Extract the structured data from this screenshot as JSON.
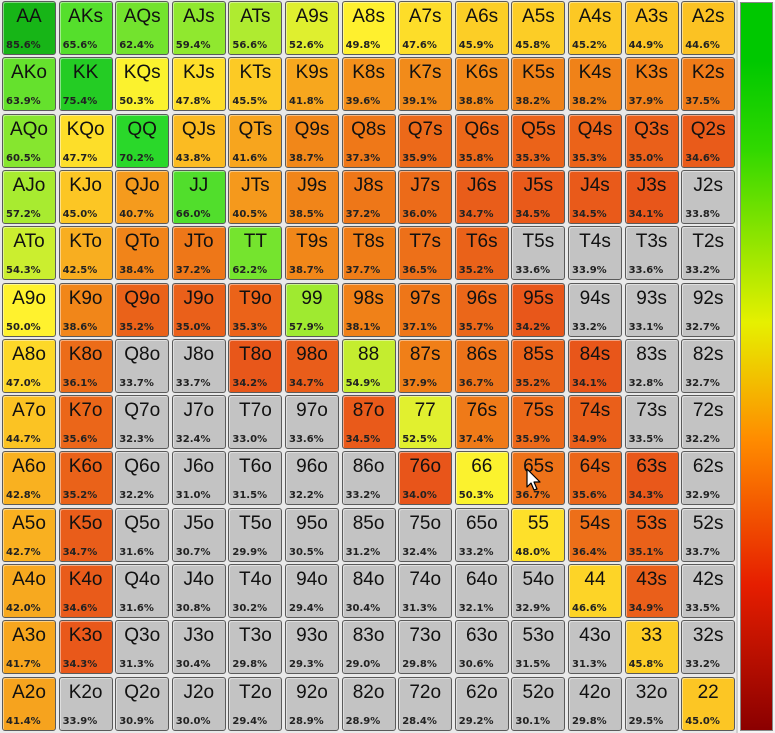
{
  "colors": {
    "gray": "#c3c3c3",
    "scale_stops": [
      "#00c800",
      "#e6f000",
      "#ff8c00",
      "#e61e00",
      "#8b0000"
    ]
  },
  "legend": {
    "icon": "color-scale-bar"
  },
  "cursor": {
    "icon": "mouse-pointer-icon"
  },
  "hands": [
    [
      [
        "AA",
        "85.6%"
      ],
      [
        "AKs",
        "65.6%"
      ],
      [
        "AQs",
        "62.4%"
      ],
      [
        "AJs",
        "59.4%"
      ],
      [
        "ATs",
        "56.6%"
      ],
      [
        "A9s",
        "52.6%"
      ],
      [
        "A8s",
        "49.8%"
      ],
      [
        "A7s",
        "47.6%"
      ],
      [
        "A6s",
        "45.9%"
      ],
      [
        "A5s",
        "45.8%"
      ],
      [
        "A4s",
        "45.2%"
      ],
      [
        "A3s",
        "44.9%"
      ],
      [
        "A2s",
        "44.6%"
      ]
    ],
    [
      [
        "AKo",
        "63.9%"
      ],
      [
        "KK",
        "75.4%"
      ],
      [
        "KQs",
        "50.3%"
      ],
      [
        "KJs",
        "47.8%"
      ],
      [
        "KTs",
        "45.5%"
      ],
      [
        "K9s",
        "41.8%"
      ],
      [
        "K8s",
        "39.6%"
      ],
      [
        "K7s",
        "39.1%"
      ],
      [
        "K6s",
        "38.8%"
      ],
      [
        "K5s",
        "38.2%"
      ],
      [
        "K4s",
        "38.2%"
      ],
      [
        "K3s",
        "37.9%"
      ],
      [
        "K2s",
        "37.5%"
      ]
    ],
    [
      [
        "AQo",
        "60.5%"
      ],
      [
        "KQo",
        "47.7%"
      ],
      [
        "QQ",
        "70.2%"
      ],
      [
        "QJs",
        "43.8%"
      ],
      [
        "QTs",
        "41.6%"
      ],
      [
        "Q9s",
        "38.7%"
      ],
      [
        "Q8s",
        "37.3%"
      ],
      [
        "Q7s",
        "35.9%"
      ],
      [
        "Q6s",
        "35.8%"
      ],
      [
        "Q5s",
        "35.3%"
      ],
      [
        "Q4s",
        "35.3%"
      ],
      [
        "Q3s",
        "35.0%"
      ],
      [
        "Q2s",
        "34.6%"
      ]
    ],
    [
      [
        "AJo",
        "57.2%"
      ],
      [
        "KJo",
        "45.0%"
      ],
      [
        "QJo",
        "40.7%"
      ],
      [
        "JJ",
        "66.0%"
      ],
      [
        "JTs",
        "40.5%"
      ],
      [
        "J9s",
        "38.5%"
      ],
      [
        "J8s",
        "37.2%"
      ],
      [
        "J7s",
        "36.0%"
      ],
      [
        "J6s",
        "34.7%"
      ],
      [
        "J5s",
        "34.5%"
      ],
      [
        "J4s",
        "34.5%"
      ],
      [
        "J3s",
        "34.1%"
      ],
      [
        "J2s",
        "33.8%"
      ]
    ],
    [
      [
        "ATo",
        "54.3%"
      ],
      [
        "KTo",
        "42.5%"
      ],
      [
        "QTo",
        "38.4%"
      ],
      [
        "JTo",
        "37.2%"
      ],
      [
        "TT",
        "62.2%"
      ],
      [
        "T9s",
        "38.7%"
      ],
      [
        "T8s",
        "37.7%"
      ],
      [
        "T7s",
        "36.5%"
      ],
      [
        "T6s",
        "35.2%"
      ],
      [
        "T5s",
        "33.6%"
      ],
      [
        "T4s",
        "33.9%"
      ],
      [
        "T3s",
        "33.6%"
      ],
      [
        "T2s",
        "33.2%"
      ]
    ],
    [
      [
        "A9o",
        "50.0%"
      ],
      [
        "K9o",
        "38.6%"
      ],
      [
        "Q9o",
        "35.2%"
      ],
      [
        "J9o",
        "35.0%"
      ],
      [
        "T9o",
        "35.3%"
      ],
      [
        "99",
        "57.9%"
      ],
      [
        "98s",
        "38.1%"
      ],
      [
        "97s",
        "37.1%"
      ],
      [
        "96s",
        "35.7%"
      ],
      [
        "95s",
        "34.2%"
      ],
      [
        "94s",
        "33.2%"
      ],
      [
        "93s",
        "33.1%"
      ],
      [
        "92s",
        "32.7%"
      ]
    ],
    [
      [
        "A8o",
        "47.0%"
      ],
      [
        "K8o",
        "36.1%"
      ],
      [
        "Q8o",
        "33.7%"
      ],
      [
        "J8o",
        "33.7%"
      ],
      [
        "T8o",
        "34.2%"
      ],
      [
        "98o",
        "34.7%"
      ],
      [
        "88",
        "54.9%"
      ],
      [
        "87s",
        "37.9%"
      ],
      [
        "86s",
        "36.7%"
      ],
      [
        "85s",
        "35.2%"
      ],
      [
        "84s",
        "34.1%"
      ],
      [
        "83s",
        "32.8%"
      ],
      [
        "82s",
        "32.7%"
      ]
    ],
    [
      [
        "A7o",
        "44.7%"
      ],
      [
        "K7o",
        "35.6%"
      ],
      [
        "Q7o",
        "32.3%"
      ],
      [
        "J7o",
        "32.4%"
      ],
      [
        "T7o",
        "33.0%"
      ],
      [
        "97o",
        "33.6%"
      ],
      [
        "87o",
        "34.5%"
      ],
      [
        "77",
        "52.5%"
      ],
      [
        "76s",
        "37.4%"
      ],
      [
        "75s",
        "35.9%"
      ],
      [
        "74s",
        "34.9%"
      ],
      [
        "73s",
        "33.5%"
      ],
      [
        "72s",
        "32.2%"
      ]
    ],
    [
      [
        "A6o",
        "42.8%"
      ],
      [
        "K6o",
        "35.2%"
      ],
      [
        "Q6o",
        "32.2%"
      ],
      [
        "J6o",
        "31.0%"
      ],
      [
        "T6o",
        "31.5%"
      ],
      [
        "96o",
        "32.2%"
      ],
      [
        "86o",
        "33.2%"
      ],
      [
        "76o",
        "34.0%"
      ],
      [
        "66",
        "50.3%"
      ],
      [
        "65s",
        "36.7%"
      ],
      [
        "64s",
        "35.6%"
      ],
      [
        "63s",
        "34.3%"
      ],
      [
        "62s",
        "32.9%"
      ]
    ],
    [
      [
        "A5o",
        "42.7%"
      ],
      [
        "K5o",
        "34.7%"
      ],
      [
        "Q5o",
        "31.6%"
      ],
      [
        "J5o",
        "30.7%"
      ],
      [
        "T5o",
        "29.9%"
      ],
      [
        "95o",
        "30.5%"
      ],
      [
        "85o",
        "31.2%"
      ],
      [
        "75o",
        "32.4%"
      ],
      [
        "65o",
        "33.2%"
      ],
      [
        "55",
        "48.0%"
      ],
      [
        "54s",
        "36.4%"
      ],
      [
        "53s",
        "35.1%"
      ],
      [
        "52s",
        "33.7%"
      ]
    ],
    [
      [
        "A4o",
        "42.0%"
      ],
      [
        "K4o",
        "34.6%"
      ],
      [
        "Q4o",
        "31.6%"
      ],
      [
        "J4o",
        "30.8%"
      ],
      [
        "T4o",
        "30.2%"
      ],
      [
        "94o",
        "29.4%"
      ],
      [
        "84o",
        "30.4%"
      ],
      [
        "74o",
        "31.3%"
      ],
      [
        "64o",
        "32.1%"
      ],
      [
        "54o",
        "32.9%"
      ],
      [
        "44",
        "46.6%"
      ],
      [
        "43s",
        "34.9%"
      ],
      [
        "42s",
        "33.5%"
      ]
    ],
    [
      [
        "A3o",
        "41.7%"
      ],
      [
        "K3o",
        "34.3%"
      ],
      [
        "Q3o",
        "31.3%"
      ],
      [
        "J3o",
        "30.4%"
      ],
      [
        "T3o",
        "29.8%"
      ],
      [
        "93o",
        "29.3%"
      ],
      [
        "83o",
        "29.0%"
      ],
      [
        "73o",
        "29.8%"
      ],
      [
        "63o",
        "30.6%"
      ],
      [
        "53o",
        "31.5%"
      ],
      [
        "43o",
        "31.3%"
      ],
      [
        "33",
        "45.8%"
      ],
      [
        "32s",
        "33.2%"
      ]
    ],
    [
      [
        "A2o",
        "41.4%"
      ],
      [
        "K2o",
        "33.9%"
      ],
      [
        "Q2o",
        "30.9%"
      ],
      [
        "J2o",
        "30.0%"
      ],
      [
        "T2o",
        "29.4%"
      ],
      [
        "92o",
        "28.9%"
      ],
      [
        "82o",
        "28.9%"
      ],
      [
        "72o",
        "28.4%"
      ],
      [
        "62o",
        "29.2%"
      ],
      [
        "52o",
        "30.1%"
      ],
      [
        "42o",
        "29.8%"
      ],
      [
        "32o",
        "29.5%"
      ],
      [
        "22",
        "45.0%"
      ]
    ]
  ]
}
